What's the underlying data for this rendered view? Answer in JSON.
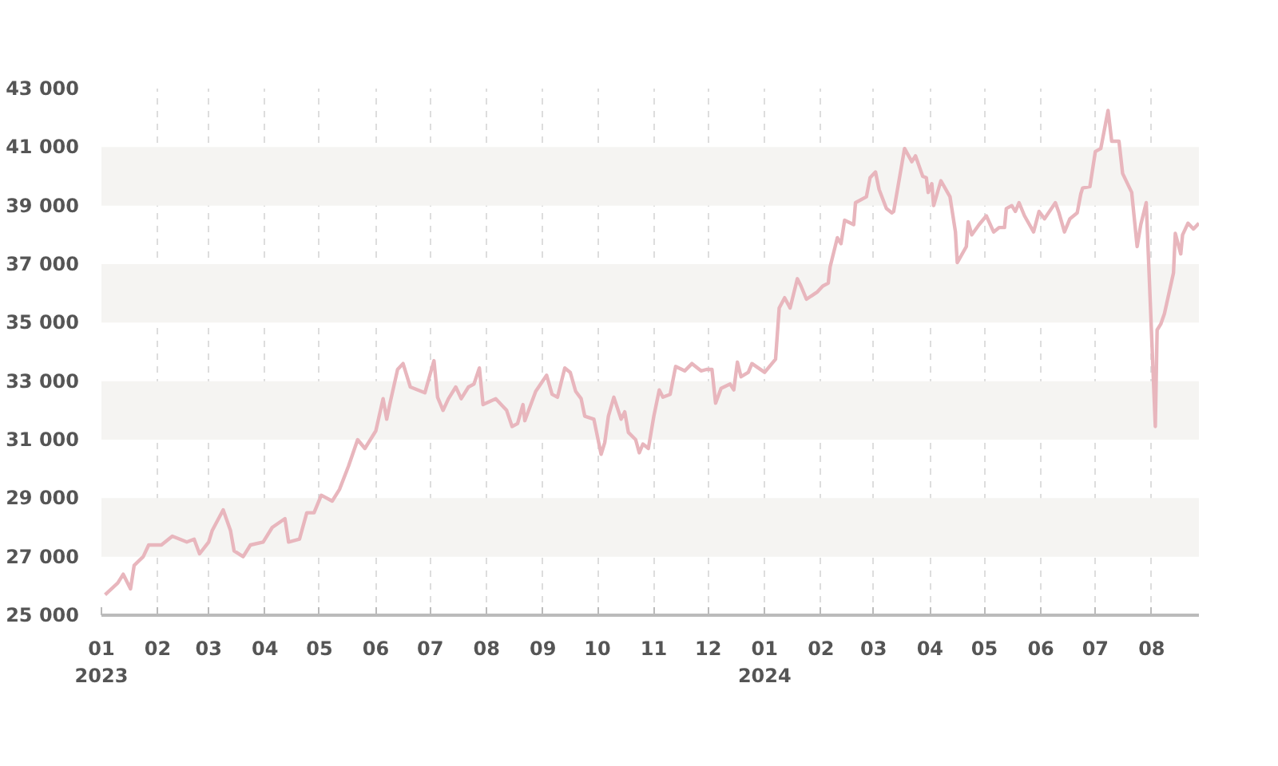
{
  "chart_data": {
    "type": "line",
    "xlim": [
      "2023-01-01",
      "2024-08-27"
    ],
    "ylim": [
      25000,
      43000
    ],
    "yticks": [
      {
        "value": 25000,
        "label": "25 000"
      },
      {
        "value": 27000,
        "label": "27 000"
      },
      {
        "value": 29000,
        "label": "29 000"
      },
      {
        "value": 31000,
        "label": "31 000"
      },
      {
        "value": 33000,
        "label": "33 000"
      },
      {
        "value": 35000,
        "label": "35 000"
      },
      {
        "value": 37000,
        "label": "37 000"
      },
      {
        "value": 39000,
        "label": "39 000"
      },
      {
        "value": 41000,
        "label": "41 000"
      },
      {
        "value": 43000,
        "label": "43 000"
      }
    ],
    "xticks": [
      {
        "value": "2023-01-01",
        "label": "01\n2023"
      },
      {
        "value": "2023-02-01",
        "label": "02"
      },
      {
        "value": "2023-03-01",
        "label": "03"
      },
      {
        "value": "2023-04-01",
        "label": "04"
      },
      {
        "value": "2023-05-01",
        "label": "05"
      },
      {
        "value": "2023-06-01",
        "label": "06"
      },
      {
        "value": "2023-07-01",
        "label": "07"
      },
      {
        "value": "2023-08-01",
        "label": "08"
      },
      {
        "value": "2023-09-01",
        "label": "09"
      },
      {
        "value": "2023-10-01",
        "label": "10"
      },
      {
        "value": "2023-11-01",
        "label": "11"
      },
      {
        "value": "2023-12-01",
        "label": "12"
      },
      {
        "value": "2024-01-01",
        "label": "01\n2024"
      },
      {
        "value": "2024-02-01",
        "label": "02"
      },
      {
        "value": "2024-03-01",
        "label": "03"
      },
      {
        "value": "2024-04-01",
        "label": "04"
      },
      {
        "value": "2024-05-01",
        "label": "05"
      },
      {
        "value": "2024-06-01",
        "label": "06"
      },
      {
        "value": "2024-07-01",
        "label": "07"
      },
      {
        "value": "2024-08-01",
        "label": "08"
      }
    ],
    "grid": true,
    "marker": "none",
    "line_style": "solid",
    "x": [
      "2023-01-03",
      "2023-01-10",
      "2023-01-13",
      "2023-01-17",
      "2023-01-19",
      "2023-01-24",
      "2023-01-27",
      "2023-02-03",
      "2023-02-09",
      "2023-02-17",
      "2023-02-21",
      "2023-02-24",
      "2023-03-01",
      "2023-03-03",
      "2023-03-09",
      "2023-03-13",
      "2023-03-15",
      "2023-03-20",
      "2023-03-24",
      "2023-03-31",
      "2023-04-05",
      "2023-04-12",
      "2023-04-14",
      "2023-04-20",
      "2023-04-24",
      "2023-04-28",
      "2023-05-02",
      "2023-05-08",
      "2023-05-12",
      "2023-05-17",
      "2023-05-22",
      "2023-05-26",
      "2023-06-01",
      "2023-06-05",
      "2023-06-07",
      "2023-06-09",
      "2023-06-13",
      "2023-06-16",
      "2023-06-20",
      "2023-06-28",
      "2023-07-03",
      "2023-07-05",
      "2023-07-08",
      "2023-07-11",
      "2023-07-15",
      "2023-07-18",
      "2023-07-22",
      "2023-07-25",
      "2023-07-28",
      "2023-07-30",
      "2023-08-06",
      "2023-08-12",
      "2023-08-15",
      "2023-08-18",
      "2023-08-21",
      "2023-08-22",
      "2023-08-28",
      "2023-09-03",
      "2023-09-06",
      "2023-09-09",
      "2023-09-13",
      "2023-09-16",
      "2023-09-19",
      "2023-09-22",
      "2023-09-24",
      "2023-09-29",
      "2023-10-03",
      "2023-10-05",
      "2023-10-07",
      "2023-10-10",
      "2023-10-14",
      "2023-10-16",
      "2023-10-18",
      "2023-10-22",
      "2023-10-24",
      "2023-10-26",
      "2023-10-29",
      "2023-11-01",
      "2023-11-04",
      "2023-11-06",
      "2023-11-10",
      "2023-11-13",
      "2023-11-18",
      "2023-11-22",
      "2023-11-27",
      "2023-11-30",
      "2023-12-03",
      "2023-12-05",
      "2023-12-08",
      "2023-12-13",
      "2023-12-15",
      "2023-12-17",
      "2023-12-19",
      "2023-12-23",
      "2023-12-25",
      "2024-01-01",
      "2024-01-07",
      "2024-01-09",
      "2024-01-12",
      "2024-01-15",
      "2024-01-19",
      "2024-01-21",
      "2024-01-24",
      "2024-01-30",
      "2024-02-02",
      "2024-02-05",
      "2024-02-06",
      "2024-02-10",
      "2024-02-12",
      "2024-02-14",
      "2024-02-19",
      "2024-02-20",
      "2024-02-26",
      "2024-02-28",
      "2024-03-02",
      "2024-03-04",
      "2024-03-08",
      "2024-03-11",
      "2024-03-12",
      "2024-03-18",
      "2024-03-22",
      "2024-03-24",
      "2024-03-28",
      "2024-03-30",
      "2024-03-31",
      "2024-04-02",
      "2024-04-03",
      "2024-04-07",
      "2024-04-12",
      "2024-04-15",
      "2024-04-16",
      "2024-04-21",
      "2024-04-22",
      "2024-04-24",
      "2024-04-28",
      "2024-05-02",
      "2024-05-06",
      "2024-05-09",
      "2024-05-12",
      "2024-05-13",
      "2024-05-16",
      "2024-05-18",
      "2024-05-20",
      "2024-05-23",
      "2024-05-28",
      "2024-05-31",
      "2024-06-03",
      "2024-06-09",
      "2024-06-11",
      "2024-06-14",
      "2024-06-17",
      "2024-06-21",
      "2024-06-23",
      "2024-06-24",
      "2024-06-28",
      "2024-07-01",
      "2024-07-04",
      "2024-07-08",
      "2024-07-10",
      "2024-07-14",
      "2024-07-16",
      "2024-07-21",
      "2024-07-24",
      "2024-07-26",
      "2024-07-29",
      "2024-08-03",
      "2024-08-04",
      "2024-08-06",
      "2024-08-08",
      "2024-08-13",
      "2024-08-14",
      "2024-08-17",
      "2024-08-18",
      "2024-08-21",
      "2024-08-24",
      "2024-08-27"
    ],
    "series": [
      {
        "color": "#e8b6bd",
        "values": [
          25700,
          26100,
          26400,
          25900,
          26700,
          27000,
          27400,
          27400,
          27700,
          27500,
          27600,
          27100,
          27500,
          27900,
          28600,
          27900,
          27200,
          27000,
          27400,
          27500,
          28000,
          28300,
          27500,
          27600,
          28500,
          28500,
          29100,
          28900,
          29300,
          30100,
          31000,
          30700,
          31300,
          32400,
          31700,
          32300,
          33400,
          33600,
          32800,
          32600,
          33700,
          32450,
          32000,
          32400,
          32800,
          32400,
          32800,
          32900,
          33450,
          32200,
          32400,
          32000,
          31450,
          31550,
          32200,
          31650,
          32650,
          33200,
          32550,
          32450,
          33450,
          33300,
          32650,
          32400,
          31800,
          31700,
          30500,
          30900,
          31800,
          32450,
          31700,
          31950,
          31250,
          31000,
          30550,
          30850,
          30700,
          31800,
          32700,
          32450,
          32550,
          33500,
          33350,
          33600,
          33350,
          33400,
          33400,
          32250,
          32750,
          32900,
          32700,
          33650,
          33150,
          33300,
          33600,
          33300,
          33750,
          35500,
          35850,
          35500,
          36500,
          36250,
          35800,
          36050,
          36250,
          36350,
          36900,
          37900,
          37700,
          38500,
          38350,
          39100,
          39300,
          39950,
          40150,
          39550,
          38900,
          38750,
          38800,
          40950,
          40500,
          40700,
          40000,
          39950,
          39450,
          39750,
          39000,
          39850,
          39300,
          38100,
          37050,
          37600,
          38450,
          38000,
          38350,
          38650,
          38100,
          38250,
          38250,
          38900,
          39000,
          38800,
          39100,
          38650,
          38100,
          38800,
          38550,
          39100,
          38750,
          38100,
          38550,
          38750,
          39400,
          39600,
          39650,
          40850,
          40950,
          42250,
          41200,
          41200,
          40100,
          39450,
          37600,
          38350,
          39100,
          31450,
          34750,
          34950,
          35300,
          36700,
          38050,
          37350,
          38000,
          38400,
          38200,
          38400
        ]
      }
    ]
  }
}
